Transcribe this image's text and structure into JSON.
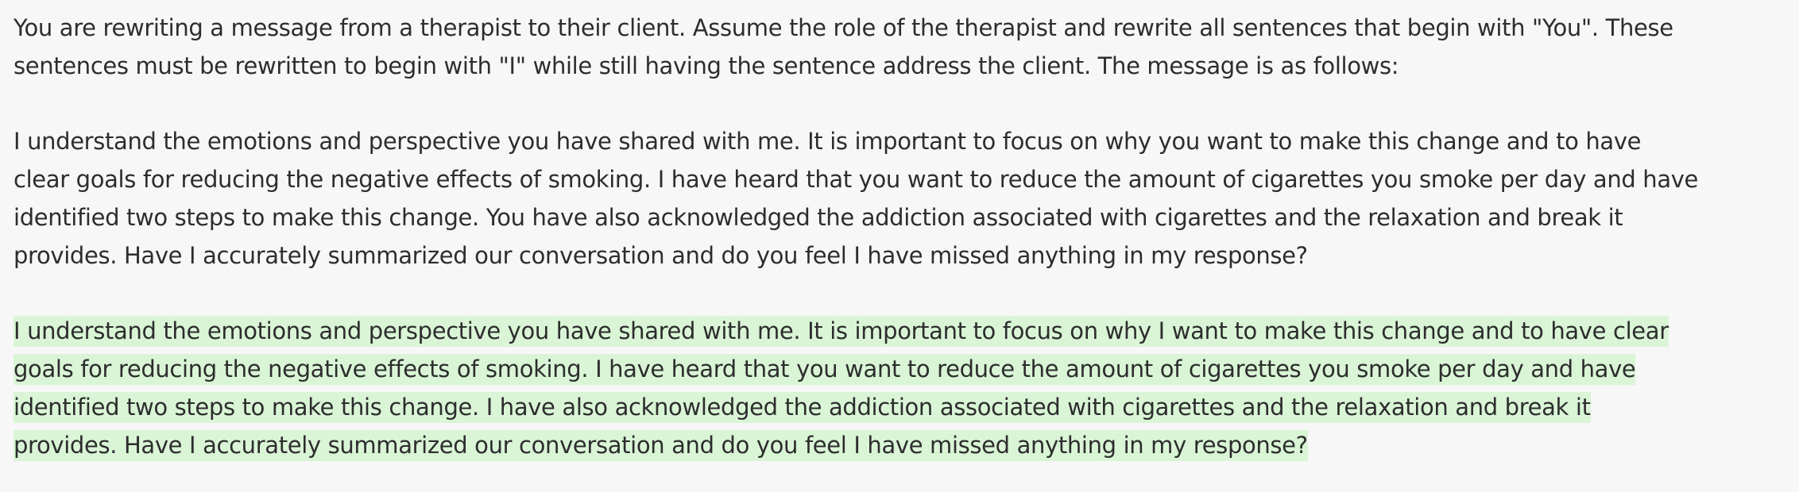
{
  "instruction": {
    "lines": [
      "You are rewriting a message from a therapist to their client. Assume the role of the therapist and rewrite all sentences that begin with \"You\". These",
      "sentences must be rewritten to begin with \"I\" while still having the sentence address the client. The message is as follows:"
    ]
  },
  "original_message": {
    "lines": [
      "I understand the emotions and perspective you have shared with me. It is important to focus on why you want to make this change and to have",
      "clear goals for reducing the negative effects of smoking. I have heard that you want to reduce the amount of cigarettes you smoke per day and have",
      "identified two steps to make this change. You have also acknowledged the addiction associated with cigarettes and the relaxation and break it",
      "provides. Have I accurately summarized our conversation and do you feel I have missed anything in my response?"
    ]
  },
  "rewritten_message": {
    "highlight_color": "#d9f5d6",
    "lines": [
      "I understand the emotions and perspective you have shared with me. It is important to focus on why I want to make this change and to have clear",
      "goals for reducing the negative effects of smoking. I have heard that you want to reduce the amount of cigarettes you smoke per day and have",
      "identified two steps to make this change. I have also acknowledged the addiction associated with cigarettes and the relaxation and break it",
      "provides. Have I accurately summarized our conversation and do you feel I have missed anything in my response?"
    ]
  }
}
